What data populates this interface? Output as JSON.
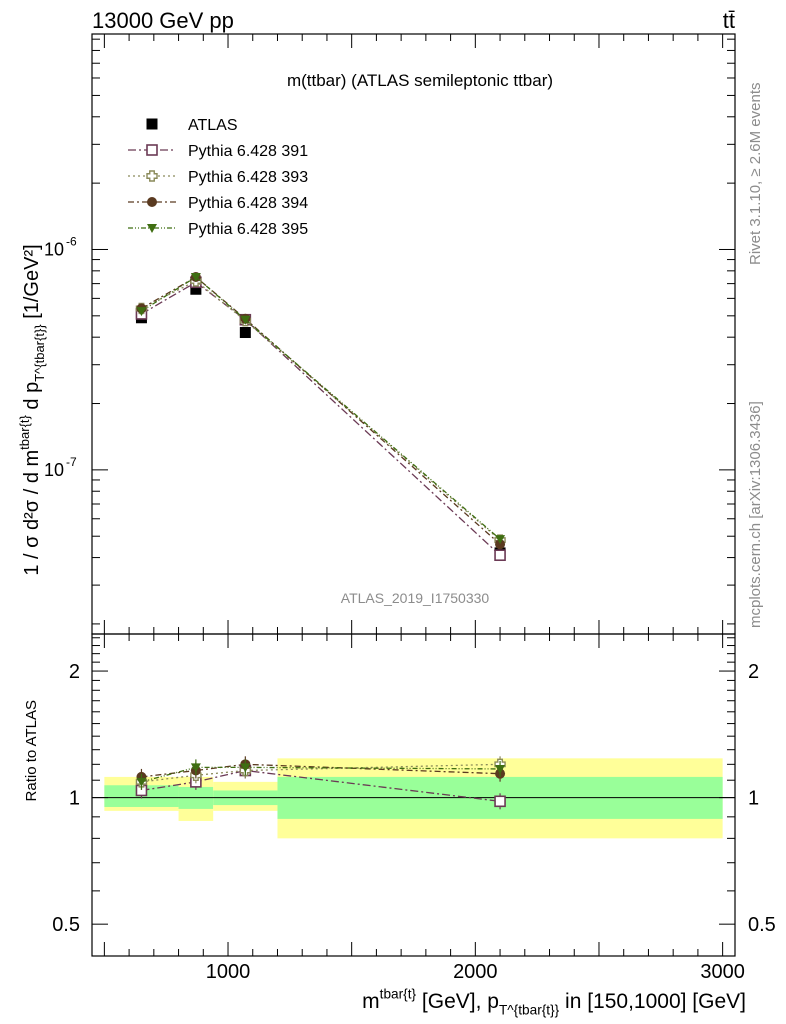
{
  "header": {
    "left": "13000 GeV pp",
    "right": "tt̄"
  },
  "side_labels": {
    "rivet": "Rivet 3.1.10, ≥ 2.6M events",
    "mcplots": "mcplots.cern.ch [arXiv:1306.3436]"
  },
  "colors": {
    "atlas": "#000000",
    "p391": "#6b3a55",
    "p393": "#8a8a5a",
    "p394": "#5a3a20",
    "p395": "#3f6e12",
    "band_inner": "#99ff99",
    "band_outer": "#ffff99"
  },
  "chart_data": [
    {
      "type": "scatter",
      "panel": "main",
      "title": "m(ttbar) (ATLAS semileptonic ttbar)",
      "analysis_label": "ATLAS_2019_I1750330",
      "ylabel": "1 / σ d²σ / d m^{tbar{t}} d p_T^{tbar{t}} [1/GeV²]",
      "yscale": "log",
      "ylim": [
        1.8e-08,
        9.5e-06
      ],
      "xlim": [
        450,
        3050
      ],
      "y_tick_labels": [
        "10^-7",
        "10^-6"
      ],
      "legend_position": "top-left",
      "x": [
        650,
        870,
        1070,
        2100
      ],
      "x_bins": [
        [
          500,
          800
        ],
        [
          800,
          940
        ],
        [
          940,
          1200
        ],
        [
          1200,
          3000
        ]
      ],
      "series": [
        {
          "name": "ATLAS",
          "marker": "filled-square",
          "values": [
            4.9e-07,
            6.6e-07,
            4.2e-07,
            4.2e-08
          ]
        },
        {
          "name": "Pythia 6.428 391",
          "marker": "open-square",
          "values": [
            5.1e-07,
            7.1e-07,
            4.8e-07,
            4.1e-08
          ]
        },
        {
          "name": "Pythia 6.428 393",
          "marker": "open-cross",
          "values": [
            5.4e-07,
            7.2e-07,
            4.75e-07,
            4.8e-08
          ]
        },
        {
          "name": "Pythia 6.428 394",
          "marker": "filled-circle",
          "values": [
            5.4e-07,
            7.5e-07,
            4.85e-07,
            4.6e-08
          ]
        },
        {
          "name": "Pythia 6.428 395",
          "marker": "filled-triangle-down",
          "values": [
            5.25e-07,
            7.5e-07,
            4.8e-07,
            4.85e-08
          ]
        }
      ]
    },
    {
      "type": "scatter",
      "panel": "ratio",
      "ylabel": "Ratio to ATLAS",
      "xlabel": "m^{tbar{t}} [GeV], p_T^{tbar{t}} in [150,1000] [GeV]",
      "yscale": "log",
      "ylim": [
        0.42,
        2.45
      ],
      "xlim": [
        450,
        3050
      ],
      "y_ticks": [
        0.5,
        1,
        2
      ],
      "y_tick_labels": [
        "0.5",
        "1",
        "2"
      ],
      "x_ticks": [
        1000,
        2000,
        3000
      ],
      "x_tick_labels": [
        "1000",
        "2000",
        "3000"
      ],
      "x": [
        650,
        870,
        1070,
        2100
      ],
      "bands": [
        {
          "x": [
            500,
            800
          ],
          "inner": [
            0.95,
            1.07
          ],
          "outer": [
            0.93,
            1.12
          ]
        },
        {
          "x": [
            800,
            940
          ],
          "inner": [
            0.94,
            1.06
          ],
          "outer": [
            0.88,
            1.12
          ]
        },
        {
          "x": [
            940,
            1200
          ],
          "inner": [
            0.96,
            1.04
          ],
          "outer": [
            0.93,
            1.09
          ]
        },
        {
          "x": [
            1200,
            3000
          ],
          "inner": [
            0.89,
            1.12
          ],
          "outer": [
            0.8,
            1.24
          ]
        }
      ],
      "series": [
        {
          "name": "Pythia 6.428 391",
          "values": [
            1.04,
            1.09,
            1.16,
            0.98
          ]
        },
        {
          "name": "Pythia 6.428 393",
          "values": [
            1.09,
            1.13,
            1.16,
            1.2
          ]
        },
        {
          "name": "Pythia 6.428 394",
          "values": [
            1.12,
            1.16,
            1.2,
            1.14
          ]
        },
        {
          "name": "Pythia 6.428 395",
          "values": [
            1.09,
            1.18,
            1.18,
            1.17
          ]
        }
      ]
    }
  ]
}
